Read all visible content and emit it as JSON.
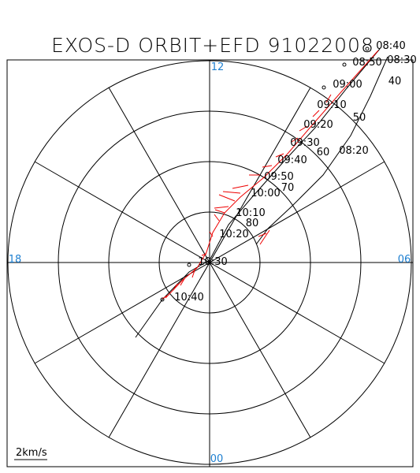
{
  "header": {
    "title": "EXOS-D ORBIT+EFD 91022008"
  },
  "hour_labels": {
    "top": "12",
    "left": "18",
    "right": "06",
    "bottom": "00"
  },
  "time_labels": [
    "08:30",
    "08:40",
    "08:50",
    "09:00",
    "09:10",
    "09:20",
    "09:30",
    "09:40",
    "09:50",
    "10:00",
    "10:10",
    "10:20",
    "10:30",
    "10:40",
    "08:20"
  ],
  "latitude_labels": [
    "40",
    "50",
    "60",
    "70",
    "80"
  ],
  "scale_label": "2km/s"
}
